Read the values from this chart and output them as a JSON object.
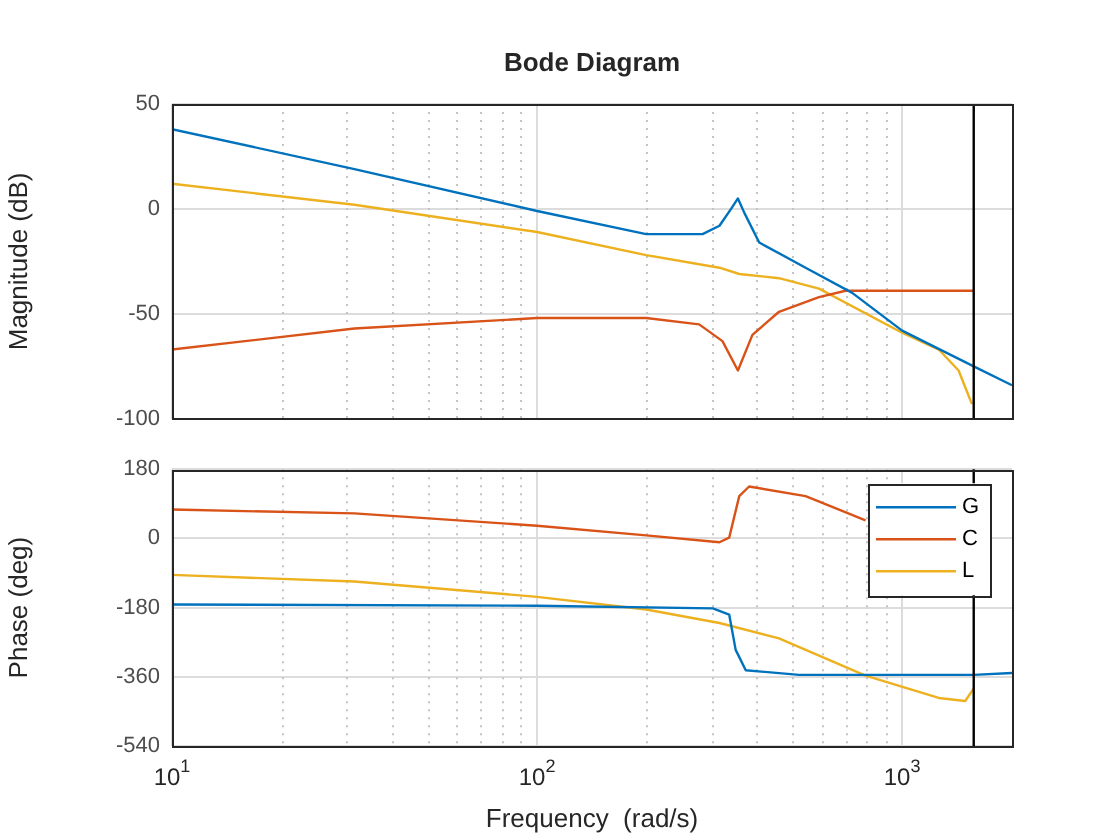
{
  "chart_data": [
    {
      "type": "line",
      "title": "Bode Diagram",
      "ylabel": "Magnitude (dB)",
      "log": "x",
      "grid": true,
      "tick_labels": "y",
      "xlim": [
        10,
        2000
      ],
      "xticks": [
        10,
        100,
        1000
      ],
      "ylim": [
        -100,
        50
      ],
      "yticks": [
        -100,
        -50,
        0,
        50
      ],
      "ref_lines": [
        {
          "axis": "x",
          "value": 1571,
          "color": "#000000"
        }
      ],
      "series": [
        {
          "color": "#0072bd",
          "x": [
            10,
            31.6,
            100,
            199,
            284,
            316,
            340,
            355,
            370,
            406,
            544,
            730,
            1000,
            1571,
            2000
          ],
          "values": [
            38,
            19,
            -1,
            -12,
            -12,
            -8,
            0,
            5,
            -2,
            -16,
            -28,
            -40,
            -58,
            -75,
            -84
          ]
        },
        {
          "color": "#d95319",
          "x": [
            10,
            31.6,
            100,
            199,
            278,
            322,
            355,
            389,
            460,
            592,
            700,
            1571
          ],
          "values": [
            -67,
            -57,
            -52,
            -52,
            -55,
            -63,
            -77,
            -60,
            -49,
            -42,
            -39,
            -39
          ]
        },
        {
          "color": "#edb120",
          "x": [
            10,
            31.6,
            100,
            199,
            316,
            358,
            460,
            592,
            1000,
            1260,
            1428,
            1521,
            1554
          ],
          "values": [
            12,
            2,
            -11,
            -22,
            -28,
            -31,
            -33,
            -38,
            -59,
            -67,
            -77,
            -89,
            -93
          ]
        }
      ]
    },
    {
      "type": "line",
      "xlabel": "Frequency  (rad/s)",
      "ylabel": "Phase (deg)",
      "log": "x",
      "grid": true,
      "legend": "top right",
      "xlim": [
        10,
        2000
      ],
      "xticks": [
        {
          "value": 10,
          "label": "10$^{1}$"
        },
        {
          "value": 100,
          "label": "10$^{2}$"
        },
        {
          "value": 1000,
          "label": "10$^{3}$"
        }
      ],
      "ylim": [
        -540,
        180
      ],
      "yticks": [
        -540,
        -360,
        -180,
        0,
        180
      ],
      "ref_lines": [
        {
          "axis": "x",
          "value": 1571,
          "color": "#000000"
        }
      ],
      "series": [
        {
          "name": "G",
          "color": "#0072bd",
          "x": [
            10,
            100,
            303,
            336,
            350,
            373,
            522,
            1571,
            2000
          ],
          "values": [
            -172,
            -175,
            -182,
            -198,
            -290,
            -343,
            -355,
            -355,
            -350
          ]
        },
        {
          "name": "C",
          "color": "#d95319",
          "x": [
            10,
            31.6,
            100,
            199,
            316,
            336,
            358,
            381,
            544,
            794
          ],
          "values": [
            75,
            65,
            33,
            8,
            -10,
            2,
            110,
            135,
            110,
            47
          ]
        },
        {
          "name": "L",
          "color": "#edb120",
          "x": [
            10,
            31.6,
            100,
            199,
            316,
            460,
            794,
            1260,
            1489,
            1571
          ],
          "values": [
            -95,
            -112,
            -152,
            -185,
            -220,
            -260,
            -357,
            -415,
            -423,
            -390
          ]
        }
      ]
    }
  ]
}
